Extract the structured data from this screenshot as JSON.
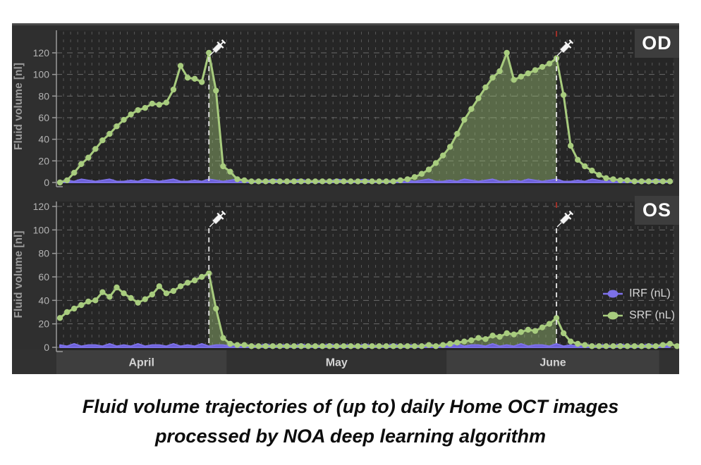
{
  "figure": {
    "caption_line1": "Fluid volume trajectories of (up to) daily Home OCT images",
    "caption_line2": "processed by NOA deep learning algorithm"
  },
  "colors": {
    "chart_bg": "#2f2f2f",
    "plot_bg": "#262626",
    "band_light": "#3e3e3e",
    "band_dark": "#313131",
    "grid_major": "#7d7d7d",
    "grid_minor": "#585858",
    "axis": "#9a9a9a",
    "tick_label": "#b3b3b3",
    "month_label": "#d4d4d4",
    "panel_label": "#ffffff",
    "panel_label_bg": "#3d3d3d",
    "srf": "#a8cc7e",
    "srf_fill": "rgba(160,198,118,0.42)",
    "irf": "#7d71e8",
    "irf_fill": "#6b5fd6",
    "injection_line": "#e6e6e6",
    "injection_marker_red": "#a03028",
    "syringe": "#f5f5f5"
  },
  "chart_data": {
    "type": "line",
    "title": "",
    "x_unit": "day",
    "y_axis": {
      "title": "Fluid volume [nl]",
      "ticks": [
        0,
        20,
        40,
        60,
        80,
        100,
        120
      ],
      "ylim": [
        0,
        140
      ]
    },
    "months": [
      {
        "label": "April",
        "days": 24,
        "shade": "light"
      },
      {
        "label": "May",
        "days": 31,
        "shade": "dark"
      },
      {
        "label": "June",
        "days": 30,
        "shade": "light"
      }
    ],
    "trailing_days": 2,
    "legend": [
      {
        "label": "IRF (nL)",
        "color": "#7d71e8"
      },
      {
        "label": "SRF (nL)",
        "color": "#a8cc7e"
      }
    ],
    "panels": [
      {
        "name": "OD",
        "injection_day_indices": [
          21,
          70
        ],
        "srf": [
          0,
          2,
          9,
          17,
          23,
          31,
          39,
          45,
          52,
          58,
          63,
          67,
          69,
          73,
          72,
          74,
          86,
          108,
          97,
          96,
          93,
          120,
          85,
          15,
          10,
          3,
          2,
          1,
          1,
          1,
          1,
          1,
          1,
          1,
          1,
          1,
          1,
          1,
          1,
          1,
          1,
          1,
          1,
          1,
          1,
          1,
          1,
          1,
          2,
          3,
          5,
          8,
          12,
          18,
          25,
          33,
          45,
          58,
          68,
          78,
          88,
          97,
          103,
          120,
          95,
          98,
          101,
          104,
          107,
          110,
          115,
          81,
          34,
          21,
          15,
          11,
          7,
          4,
          3,
          2,
          2,
          1,
          1,
          1,
          1,
          1,
          1
        ],
        "irf": [
          1,
          2,
          1,
          3,
          2,
          1,
          2,
          3,
          1,
          1,
          2,
          1,
          3,
          2,
          1,
          2,
          3,
          1,
          1,
          2,
          1,
          3,
          2,
          1,
          2,
          3,
          1,
          1,
          2,
          1,
          3,
          2,
          1,
          2,
          3,
          1,
          1,
          2,
          1,
          3,
          2,
          1,
          2,
          3,
          1,
          1,
          2,
          1,
          3,
          2,
          1,
          2,
          3,
          1,
          1,
          2,
          1,
          3,
          2,
          1,
          2,
          3,
          1,
          1,
          2,
          1,
          3,
          2,
          1,
          2,
          3,
          1,
          1,
          2,
          1,
          3,
          2,
          1,
          2,
          3,
          1,
          1,
          2,
          1,
          3,
          2,
          1
        ]
      },
      {
        "name": "OS",
        "injection_day_indices": [
          21,
          70
        ],
        "srf": [
          25,
          30,
          33,
          36,
          39,
          40,
          47,
          43,
          51,
          46,
          42,
          38,
          41,
          45,
          52,
          46,
          48,
          52,
          55,
          57,
          60,
          63,
          33,
          8,
          3,
          2,
          2,
          1,
          1,
          1,
          1,
          1,
          1,
          1,
          1,
          1,
          1,
          1,
          1,
          1,
          1,
          1,
          1,
          1,
          1,
          1,
          1,
          1,
          1,
          1,
          1,
          1,
          2,
          1,
          2,
          3,
          4,
          5,
          6,
          8,
          7,
          10,
          9,
          12,
          11,
          13,
          15,
          14,
          17,
          20,
          25,
          12,
          5,
          3,
          2,
          1,
          1,
          1,
          1,
          1,
          1,
          1,
          1,
          1,
          1,
          2,
          3,
          1,
          1
        ],
        "irf": [
          2,
          1,
          3,
          1,
          2,
          2,
          1,
          3,
          1,
          2,
          1,
          3,
          1,
          2,
          2,
          1,
          3,
          1,
          2,
          1,
          3,
          1,
          2,
          2,
          1,
          3,
          1,
          2,
          1,
          3,
          1,
          2,
          2,
          1,
          3,
          1,
          2,
          1,
          3,
          1,
          2,
          2,
          1,
          3,
          1,
          2,
          1,
          3,
          1,
          2,
          2,
          1,
          3,
          1,
          2,
          1,
          3,
          1,
          2,
          2,
          1,
          3,
          1,
          2,
          1,
          3,
          1,
          2,
          2,
          1,
          3,
          1,
          2,
          1,
          3,
          1,
          2,
          2,
          1,
          3,
          1,
          2,
          1,
          3,
          1,
          2,
          1
        ]
      }
    ]
  }
}
